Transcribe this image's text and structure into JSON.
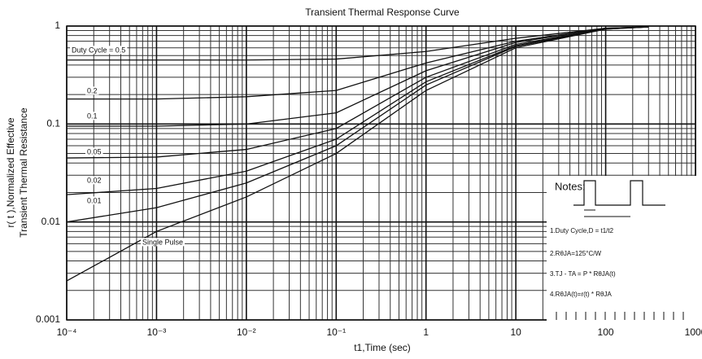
{
  "chart_data": {
    "type": "line",
    "title": "Transient Thermal Response Curve",
    "xlabel": "t1,Time (sec)",
    "ylabel": [
      "r( t ),Normalized Effective",
      "Transient Thermal Resistance"
    ],
    "log_x": true,
    "log_y": true,
    "grid": true,
    "minor_grid": true,
    "x": [
      0.0001,
      0.001,
      0.01,
      0.1,
      1,
      10,
      100,
      300
    ],
    "series": [
      {
        "name": "Duty Cycle = 0.5",
        "color": "#111111",
        "values": [
          0.45,
          0.45,
          0.45,
          0.46,
          0.55,
          0.75,
          0.95,
          0.98
        ]
      },
      {
        "name": "0.2",
        "color": "#111111",
        "values": [
          0.18,
          0.18,
          0.19,
          0.22,
          0.42,
          0.7,
          0.95,
          0.98
        ]
      },
      {
        "name": "0.1",
        "color": "#111111",
        "values": [
          0.095,
          0.095,
          0.1,
          0.13,
          0.35,
          0.68,
          0.95,
          0.98
        ]
      },
      {
        "name": "0.05",
        "color": "#111111",
        "values": [
          0.045,
          0.046,
          0.055,
          0.09,
          0.3,
          0.65,
          0.94,
          0.98
        ]
      },
      {
        "name": "0.02",
        "color": "#111111",
        "values": [
          0.019,
          0.022,
          0.033,
          0.07,
          0.27,
          0.63,
          0.94,
          0.98
        ]
      },
      {
        "name": "0.01",
        "color": "#111111",
        "values": [
          0.01,
          0.014,
          0.025,
          0.06,
          0.25,
          0.62,
          0.93,
          0.98
        ]
      },
      {
        "name": "Single Pulse",
        "color": "#111111",
        "values": [
          0.0025,
          0.008,
          0.018,
          0.05,
          0.22,
          0.6,
          0.93,
          0.98
        ]
      }
    ],
    "xlim": [
      0.0001,
      1000
    ],
    "ylim": [
      0.001,
      1
    ],
    "xticks": [
      {
        "value": 0.0001,
        "label": "10⁻⁴"
      },
      {
        "value": 0.001,
        "label": "10⁻³"
      },
      {
        "value": 0.01,
        "label": "10⁻²"
      },
      {
        "value": 0.1,
        "label": "10⁻¹"
      },
      1,
      10,
      100,
      1000
    ],
    "yticks": [
      0.001,
      0.01,
      0.1,
      1
    ],
    "notes": [
      "Notes:",
      "1.Duty Cycle,D = t1/t2",
      "2.RθJA=125°C/W",
      "3.TJ - TA = P * RθJA(t)",
      "4.RθJA(t)=r(t) * RθJA"
    ]
  }
}
